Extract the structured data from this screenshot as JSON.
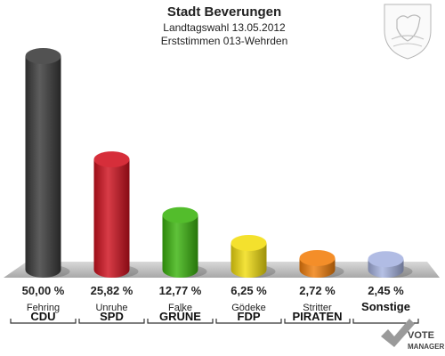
{
  "header": {
    "title": "Stadt Beverungen",
    "subtitle": "Landtagswahl 13.05.2012",
    "subtitle2": "Erststimmen 013-Wehrden"
  },
  "chart_data": {
    "type": "bar",
    "title": "Stadt Beverungen",
    "categories": [
      "CDU",
      "SPD",
      "GRÜNE",
      "FDP",
      "PIRATEN",
      "Sonstige"
    ],
    "candidates": [
      "Fehring",
      "Unruhe",
      "Falke",
      "Gödeke",
      "Stritter",
      ""
    ],
    "values": [
      50.0,
      25.82,
      12.77,
      6.25,
      2.72,
      2.45
    ],
    "value_labels": [
      "50,00 %",
      "25,82 %",
      "12,77 %",
      "6,25 %",
      "2,72 %",
      "2,45 %"
    ],
    "colors": [
      "#3a3a3a",
      "#d0111f",
      "#3cb40f",
      "#f2dd10",
      "#f27f0c",
      "#a6b3e0"
    ],
    "ylim": [
      0,
      50
    ],
    "grid": false,
    "legend": "none"
  },
  "logo": {
    "line1": "VOTE",
    "line2": "MANAGER"
  }
}
